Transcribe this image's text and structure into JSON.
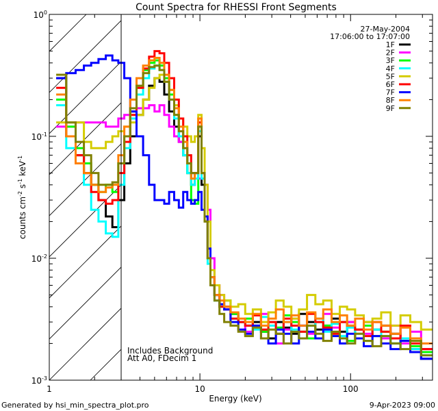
{
  "chart_data": {
    "type": "line",
    "title": "Count Spectra for RHESSI Front Segments",
    "xlabel": "Energy (keV)",
    "ylabel": {
      "base": "counts cm",
      "exp1": "-2",
      "mid": " s",
      "exp2": "-1",
      "mid2": " keV",
      "exp3": "-1"
    },
    "xscale": "log",
    "yscale": "log",
    "xlim": [
      1,
      350
    ],
    "ylim": [
      0.001,
      1
    ],
    "x_ticks": [
      {
        "value": 1,
        "label": "1"
      },
      {
        "value": 10,
        "label": "10"
      },
      {
        "value": 100,
        "label": "100"
      }
    ],
    "y_ticks": [
      {
        "value": 1,
        "base": "10",
        "exp": "0"
      },
      {
        "value": 0.1,
        "base": "10",
        "exp": "-1"
      },
      {
        "value": 0.01,
        "base": "10",
        "exp": "-2"
      },
      {
        "value": 0.001,
        "base": "10",
        "exp": "-3"
      }
    ],
    "hatched_region_keV": [
      1,
      3
    ],
    "date": "27-May-2004",
    "time_range": "17:06:00 to 17:07:00",
    "annotations": [
      "Includes Background",
      "Att A0, FDecim 1"
    ],
    "legend_position": "top-right",
    "energies": [
      1.2,
      1.4,
      1.6,
      1.8,
      2.0,
      2.25,
      2.5,
      2.75,
      3.0,
      3.3,
      3.6,
      4.0,
      4.4,
      4.8,
      5.2,
      5.6,
      6.0,
      6.5,
      7.0,
      7.5,
      8.0,
      8.5,
      9.0,
      9.5,
      10,
      10.5,
      11,
      11.5,
      12,
      13,
      14,
      15,
      17,
      19,
      21,
      24,
      27,
      30,
      34,
      38,
      43,
      48,
      55,
      62,
      70,
      80,
      90,
      100,
      115,
      130,
      150,
      170,
      200,
      230,
      270,
      320
    ],
    "series": [
      {
        "name": "1F",
        "color": "#000000",
        "values": [
          0.3,
          0.1,
          0.07,
          0.05,
          0.04,
          0.03,
          0.022,
          0.018,
          0.03,
          0.06,
          0.1,
          0.15,
          0.2,
          0.26,
          0.3,
          0.28,
          0.22,
          0.16,
          0.12,
          0.09,
          0.07,
          0.05,
          0.04,
          0.05,
          0.1,
          0.04,
          0.02,
          0.01,
          0.006,
          0.005,
          0.004,
          0.004,
          0.0035,
          0.003,
          0.0028,
          0.003,
          0.0025,
          0.0022,
          0.003,
          0.0027,
          0.0024,
          0.0035,
          0.003,
          0.0026,
          0.0028,
          0.0032,
          0.0025,
          0.003,
          0.0022,
          0.003,
          0.0026,
          0.0028,
          0.0024,
          0.0021,
          0.0018,
          0.0015
        ]
      },
      {
        "name": "2F",
        "color": "#ff00ff",
        "values": [
          0.12,
          0.12,
          0.13,
          0.13,
          0.13,
          0.13,
          0.12,
          0.12,
          0.14,
          0.15,
          0.16,
          0.17,
          0.17,
          0.18,
          0.16,
          0.18,
          0.15,
          0.12,
          0.1,
          0.09,
          0.07,
          0.06,
          0.05,
          0.05,
          0.045,
          0.05,
          0.04,
          0.025,
          0.01,
          0.006,
          0.005,
          0.004,
          0.0035,
          0.003,
          0.0025,
          0.0028,
          0.0035,
          0.003,
          0.002,
          0.0026,
          0.0032,
          0.0028,
          0.0024,
          0.003,
          0.0035,
          0.0027,
          0.0022,
          0.003,
          0.0026,
          0.0024,
          0.003,
          0.0022,
          0.0028,
          0.002,
          0.0025,
          0.0018
        ]
      },
      {
        "name": "3F",
        "color": "#00ff00",
        "values": [
          0.2,
          0.12,
          0.08,
          0.06,
          0.04,
          0.035,
          0.04,
          0.035,
          0.06,
          0.1,
          0.16,
          0.25,
          0.35,
          0.4,
          0.42,
          0.38,
          0.3,
          0.22,
          0.15,
          0.1,
          0.07,
          0.05,
          0.03,
          0.028,
          0.12,
          0.05,
          0.02,
          0.01,
          0.007,
          0.005,
          0.004,
          0.0045,
          0.0035,
          0.003,
          0.0032,
          0.0028,
          0.0025,
          0.003,
          0.0027,
          0.0034,
          0.003,
          0.0025,
          0.0022,
          0.003,
          0.0028,
          0.0024,
          0.003,
          0.0021,
          0.0026,
          0.0028,
          0.0023,
          0.0025,
          0.002,
          0.0022,
          0.0019,
          0.0017
        ]
      },
      {
        "name": "4F",
        "color": "#00ffff",
        "values": [
          0.18,
          0.08,
          0.06,
          0.04,
          0.025,
          0.02,
          0.016,
          0.015,
          0.04,
          0.08,
          0.14,
          0.22,
          0.3,
          0.36,
          0.38,
          0.35,
          0.28,
          0.2,
          0.14,
          0.1,
          0.07,
          0.05,
          0.04,
          0.045,
          0.11,
          0.045,
          0.02,
          0.009,
          0.006,
          0.0045,
          0.004,
          0.0038,
          0.0032,
          0.003,
          0.0028,
          0.0026,
          0.0033,
          0.0028,
          0.0024,
          0.003,
          0.0026,
          0.0022,
          0.0028,
          0.0032,
          0.0025,
          0.0029,
          0.0023,
          0.0027,
          0.0024,
          0.0021,
          0.0026,
          0.0023,
          0.002,
          0.0022,
          0.0018,
          0.0016
        ]
      },
      {
        "name": "5F",
        "color": "#d4cc00",
        "values": [
          0.13,
          0.13,
          0.13,
          0.09,
          0.08,
          0.08,
          0.09,
          0.1,
          0.11,
          0.12,
          0.13,
          0.15,
          0.2,
          0.25,
          0.3,
          0.32,
          0.28,
          0.24,
          0.18,
          0.14,
          0.12,
          0.1,
          0.09,
          0.1,
          0.15,
          0.08,
          0.04,
          0.02,
          0.008,
          0.006,
          0.005,
          0.0045,
          0.004,
          0.0042,
          0.0035,
          0.0038,
          0.003,
          0.0036,
          0.0045,
          0.004,
          0.0032,
          0.0038,
          0.005,
          0.0042,
          0.0045,
          0.0035,
          0.004,
          0.0038,
          0.0034,
          0.003,
          0.0032,
          0.0036,
          0.0028,
          0.0034,
          0.003,
          0.0026
        ]
      },
      {
        "name": "6F",
        "color": "#ff0000",
        "values": [
          0.25,
          0.1,
          0.07,
          0.05,
          0.035,
          0.03,
          0.028,
          0.03,
          0.05,
          0.09,
          0.15,
          0.25,
          0.36,
          0.45,
          0.5,
          0.48,
          0.4,
          0.3,
          0.2,
          0.14,
          0.1,
          0.07,
          0.05,
          0.05,
          0.13,
          0.05,
          0.022,
          0.01,
          0.006,
          0.005,
          0.004,
          0.0038,
          0.0032,
          0.003,
          0.0028,
          0.0034,
          0.0026,
          0.003,
          0.0024,
          0.0032,
          0.0028,
          0.0025,
          0.0035,
          0.003,
          0.0027,
          0.0024,
          0.003,
          0.0028,
          0.0026,
          0.0023,
          0.003,
          0.0025,
          0.0022,
          0.0028,
          0.002,
          0.0018
        ]
      },
      {
        "name": "7F",
        "color": "#0000ff",
        "values": [
          0.3,
          0.33,
          0.35,
          0.38,
          0.4,
          0.43,
          0.46,
          0.42,
          0.4,
          0.3,
          0.16,
          0.1,
          0.07,
          0.04,
          0.03,
          0.03,
          0.028,
          0.035,
          0.03,
          0.026,
          0.035,
          0.03,
          0.028,
          0.03,
          0.035,
          0.025,
          0.022,
          0.012,
          0.007,
          0.005,
          0.0042,
          0.0038,
          0.003,
          0.0026,
          0.0024,
          0.0028,
          0.0022,
          0.002,
          0.0026,
          0.0024,
          0.002,
          0.0028,
          0.0025,
          0.0022,
          0.0026,
          0.0023,
          0.002,
          0.0024,
          0.0022,
          0.0019,
          0.0023,
          0.002,
          0.0018,
          0.0021,
          0.0017,
          0.0015
        ]
      },
      {
        "name": "8F",
        "color": "#ff8000",
        "values": [
          0.22,
          0.1,
          0.06,
          0.05,
          0.04,
          0.035,
          0.038,
          0.04,
          0.07,
          0.12,
          0.2,
          0.3,
          0.38,
          0.42,
          0.44,
          0.4,
          0.32,
          0.24,
          0.17,
          0.12,
          0.09,
          0.06,
          0.045,
          0.05,
          0.14,
          0.05,
          0.02,
          0.01,
          0.007,
          0.005,
          0.0045,
          0.004,
          0.0036,
          0.0032,
          0.003,
          0.0035,
          0.0028,
          0.0032,
          0.0038,
          0.003,
          0.0034,
          0.0028,
          0.0036,
          0.0032,
          0.0038,
          0.003,
          0.0034,
          0.0028,
          0.0032,
          0.0026,
          0.003,
          0.0028,
          0.0024,
          0.0027,
          0.0022,
          0.002
        ]
      },
      {
        "name": "9F",
        "color": "#808000",
        "values": [
          0.32,
          0.13,
          0.09,
          0.07,
          0.05,
          0.04,
          0.04,
          0.042,
          0.06,
          0.1,
          0.17,
          0.26,
          0.33,
          0.37,
          0.38,
          0.35,
          0.28,
          0.2,
          0.15,
          0.11,
          0.08,
          0.06,
          0.05,
          0.05,
          0.12,
          0.05,
          0.02,
          0.01,
          0.006,
          0.0045,
          0.0035,
          0.003,
          0.0028,
          0.0025,
          0.0023,
          0.0027,
          0.0022,
          0.0026,
          0.0024,
          0.002,
          0.0025,
          0.0022,
          0.0028,
          0.0024,
          0.0021,
          0.0025,
          0.0022,
          0.002,
          0.0024,
          0.0021,
          0.0019,
          0.0023,
          0.002,
          0.0018,
          0.0021,
          0.0016
        ]
      }
    ]
  },
  "footer": {
    "generated_by": "Generated by hsi_min_spectra_plot.pro",
    "timestamp": "9-Apr-2023 09:00"
  }
}
